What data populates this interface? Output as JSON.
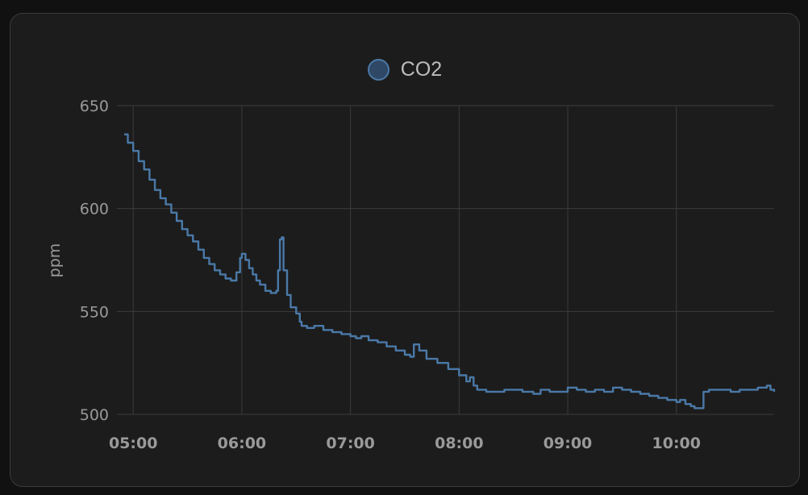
{
  "card": {
    "legend_label": "CO2"
  },
  "chart_data": {
    "type": "line",
    "title": "",
    "xlabel": "",
    "ylabel": "ppm",
    "x_ticks": [
      "05:00",
      "06:00",
      "07:00",
      "08:00",
      "09:00",
      "10:00"
    ],
    "y_ticks": [
      500,
      550,
      600,
      650
    ],
    "ylim": [
      500,
      650
    ],
    "xlim": [
      "04:51",
      "10:54"
    ],
    "grid": true,
    "legend_position": "top",
    "series": [
      {
        "name": "CO2",
        "color": "#4a79a8",
        "x": [
          "04:55",
          "04:57",
          "05:00",
          "05:03",
          "05:06",
          "05:09",
          "05:12",
          "05:15",
          "05:18",
          "05:21",
          "05:24",
          "05:27",
          "05:30",
          "05:33",
          "05:36",
          "05:39",
          "05:42",
          "05:45",
          "05:48",
          "05:51",
          "05:54",
          "05:57",
          "05:59",
          "06:00",
          "06:02",
          "06:04",
          "06:06",
          "06:08",
          "06:10",
          "06:13",
          "06:16",
          "06:19",
          "06:20",
          "06:21",
          "06:22",
          "06:23",
          "06:25",
          "06:27",
          "06:30",
          "06:32",
          "06:33",
          "06:36",
          "06:40",
          "06:45",
          "06:50",
          "06:55",
          "07:00",
          "07:03",
          "07:06",
          "07:10",
          "07:15",
          "07:20",
          "07:25",
          "07:30",
          "07:33",
          "07:35",
          "07:38",
          "07:42",
          "07:48",
          "07:54",
          "08:00",
          "08:04",
          "08:06",
          "08:08",
          "08:10",
          "08:15",
          "08:20",
          "08:25",
          "08:30",
          "08:35",
          "08:38",
          "08:41",
          "08:45",
          "08:50",
          "08:55",
          "09:00",
          "09:05",
          "09:10",
          "09:15",
          "09:20",
          "09:25",
          "09:30",
          "09:35",
          "09:40",
          "09:45",
          "09:50",
          "09:55",
          "10:00",
          "10:02",
          "10:05",
          "10:08",
          "10:10",
          "10:12",
          "10:15",
          "10:18",
          "10:20",
          "10:25",
          "10:30",
          "10:35",
          "10:40",
          "10:45",
          "10:50",
          "10:52",
          "10:54"
        ],
        "values": [
          636,
          632,
          628,
          623,
          619,
          614,
          609,
          605,
          602,
          598,
          594,
          590,
          587,
          584,
          580,
          576,
          573,
          570,
          568,
          566,
          565,
          569,
          576,
          578,
          575,
          571,
          568,
          565,
          563,
          560,
          559,
          560,
          570,
          585,
          586,
          570,
          558,
          552,
          549,
          545,
          543,
          542,
          543,
          541,
          540,
          539,
          538,
          537,
          538,
          536,
          535,
          533,
          531,
          529,
          528,
          534,
          531,
          527,
          525,
          522,
          519,
          516,
          518,
          514,
          512,
          511,
          511,
          512,
          512,
          511,
          511,
          510,
          512,
          511,
          511,
          513,
          512,
          511,
          512,
          511,
          513,
          512,
          511,
          510,
          509,
          508,
          507,
          506,
          507,
          505,
          504,
          503,
          503,
          511,
          512,
          512,
          512,
          511,
          512,
          512,
          513,
          514,
          512,
          511
        ]
      }
    ]
  }
}
